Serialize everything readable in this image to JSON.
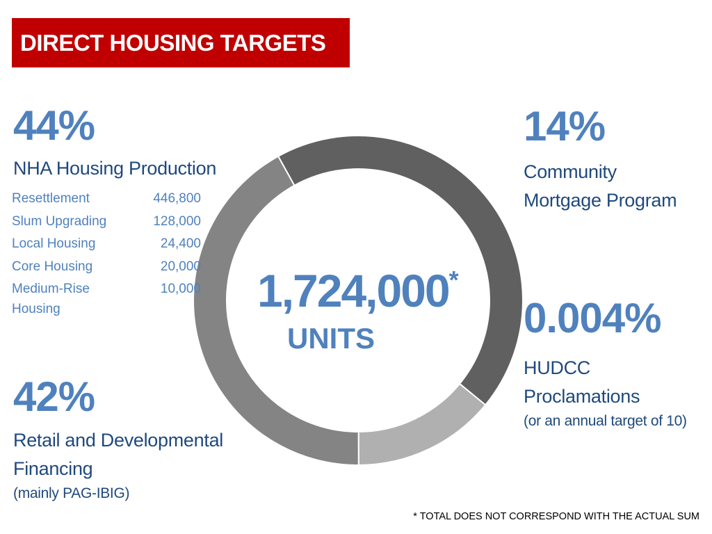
{
  "title": "DIRECT HOUSING TARGETS",
  "center": {
    "total": "1,724,000",
    "asterisk": "*",
    "unit": "UNITS"
  },
  "segments": {
    "nha": {
      "percent": "44%",
      "label": "NHA Housing Production"
    },
    "community": {
      "percent": "14%",
      "label_line1": "Community",
      "label_line2": "Mortgage Program"
    },
    "hudcc": {
      "percent": "0.004%",
      "label_line1": "HUDCC",
      "label_line2": "Proclamations",
      "note": "(or an annual target of 10)"
    },
    "retail": {
      "percent": "42%",
      "label_line1": "Retail and Developmental",
      "label_line2": "Financing",
      "note": "(mainly PAG-IBIG)"
    }
  },
  "breakdown": [
    {
      "name": "Resettlement",
      "value": "446,800"
    },
    {
      "name": "Slum Upgrading",
      "value": "128,000"
    },
    {
      "name": "Local Housing",
      "value": "24,400"
    },
    {
      "name": "Core Housing",
      "value": "20,000"
    },
    {
      "name": "Medium-Rise Housing",
      "value": "10,000"
    }
  ],
  "footnote": "* TOTAL DOES NOT CORRESPOND WITH THE ACTUAL SUM",
  "colors": {
    "title_bg": "#c00000",
    "accent": "#4f81bd",
    "label": "#1f497d"
  },
  "chart_data": {
    "type": "pie",
    "style": "donut",
    "total_label": "1,724,000",
    "categories": [
      "NHA Housing Production",
      "Community Mortgage Program",
      "HUDCC Proclamations",
      "Retail and Developmental Financing"
    ],
    "values": [
      44,
      14,
      0.004,
      42
    ],
    "unit": "%",
    "colors": [
      "#606060",
      "#b0b0b0",
      "#8c8c8c",
      "#848484"
    ]
  }
}
